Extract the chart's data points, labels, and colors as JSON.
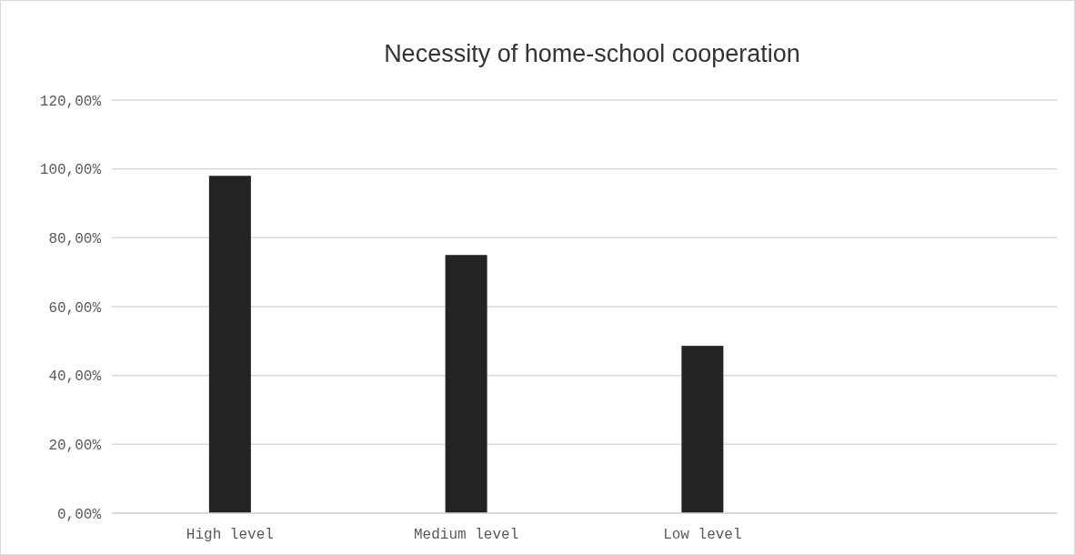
{
  "chart_data": {
    "type": "bar",
    "title": "Necessity of home-school cooperation",
    "categories": [
      "High level",
      "Medium level",
      "Low level",
      null
    ],
    "values": [
      98,
      75,
      48.6,
      null
    ],
    "color": "#232323",
    "ylim": [
      0,
      120
    ],
    "yticks": [
      {
        "value": 0,
        "label": "0,00%"
      },
      {
        "value": 20,
        "label": "20,00%"
      },
      {
        "value": 40,
        "label": "40,00%"
      },
      {
        "value": 60,
        "label": "60,00%"
      },
      {
        "value": 80,
        "label": "80,00%"
      },
      {
        "value": 100,
        "label": "100,00%"
      },
      {
        "value": 120,
        "label": "120,00%"
      }
    ],
    "grid": "y"
  }
}
